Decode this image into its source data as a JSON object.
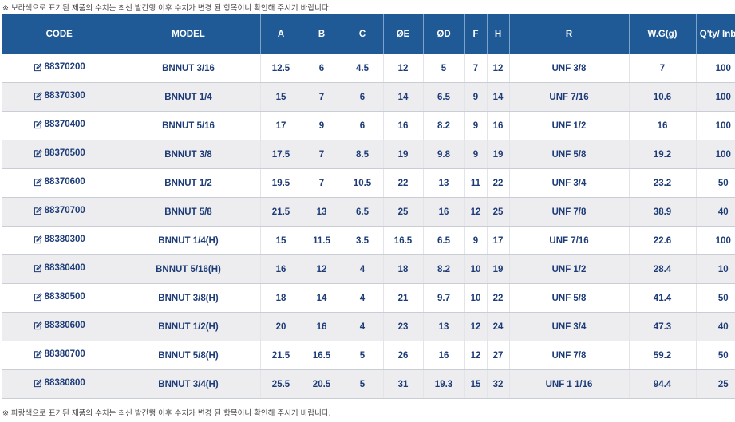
{
  "notes": {
    "top": "※ 보라색으로 표기된 제품의 수치는 최신 발간행 이후 수치가 변경 된 항목이니 확인해 주시기 바랍니다.",
    "bottom": "※ 파랑색으로 표기된 제품의 수치는 최신 발간행 이후 수치가 변경 된 항목이니 확인해 주시기 바랍니다."
  },
  "colors": {
    "header_bg": "#1f5a96",
    "text": "#1d3c78",
    "row_alt": "#ededef"
  },
  "edit_icon": "edit-icon",
  "table": {
    "headers": [
      "CODE",
      "MODEL",
      "A",
      "B",
      "C",
      "ØE",
      "ØD",
      "F",
      "H",
      "R",
      "W.G(g)",
      "Q'ty/ Inbox"
    ],
    "rows": [
      [
        "88370200",
        "BNNUT 3/16",
        "12.5",
        "6",
        "4.5",
        "12",
        "5",
        "7",
        "12",
        "UNF 3/8",
        "7",
        "100"
      ],
      [
        "88370300",
        "BNNUT 1/4",
        "15",
        "7",
        "6",
        "14",
        "6.5",
        "9",
        "14",
        "UNF 7/16",
        "10.6",
        "100"
      ],
      [
        "88370400",
        "BNNUT 5/16",
        "17",
        "9",
        "6",
        "16",
        "8.2",
        "9",
        "16",
        "UNF 1/2",
        "16",
        "100"
      ],
      [
        "88370500",
        "BNNUT 3/8",
        "17.5",
        "7",
        "8.5",
        "19",
        "9.8",
        "9",
        "19",
        "UNF 5/8",
        "19.2",
        "100"
      ],
      [
        "88370600",
        "BNNUT 1/2",
        "19.5",
        "7",
        "10.5",
        "22",
        "13",
        "11",
        "22",
        "UNF 3/4",
        "23.2",
        "50"
      ],
      [
        "88370700",
        "BNNUT 5/8",
        "21.5",
        "13",
        "6.5",
        "25",
        "16",
        "12",
        "25",
        "UNF 7/8",
        "38.9",
        "40"
      ],
      [
        "88380300",
        "BNNUT 1/4(H)",
        "15",
        "11.5",
        "3.5",
        "16.5",
        "6.5",
        "9",
        "17",
        "UNF 7/16",
        "22.6",
        "100"
      ],
      [
        "88380400",
        "BNNUT 5/16(H)",
        "16",
        "12",
        "4",
        "18",
        "8.2",
        "10",
        "19",
        "UNF 1/2",
        "28.4",
        "10"
      ],
      [
        "88380500",
        "BNNUT 3/8(H)",
        "18",
        "14",
        "4",
        "21",
        "9.7",
        "10",
        "22",
        "UNF 5/8",
        "41.4",
        "50"
      ],
      [
        "88380600",
        "BNNUT 1/2(H)",
        "20",
        "16",
        "4",
        "23",
        "13",
        "12",
        "24",
        "UNF 3/4",
        "47.3",
        "40"
      ],
      [
        "88380700",
        "BNNUT 5/8(H)",
        "21.5",
        "16.5",
        "5",
        "26",
        "16",
        "12",
        "27",
        "UNF 7/8",
        "59.2",
        "50"
      ],
      [
        "88380800",
        "BNNUT 3/4(H)",
        "25.5",
        "20.5",
        "5",
        "31",
        "19.3",
        "15",
        "32",
        "UNF 1 1/16",
        "94.4",
        "25"
      ]
    ]
  }
}
